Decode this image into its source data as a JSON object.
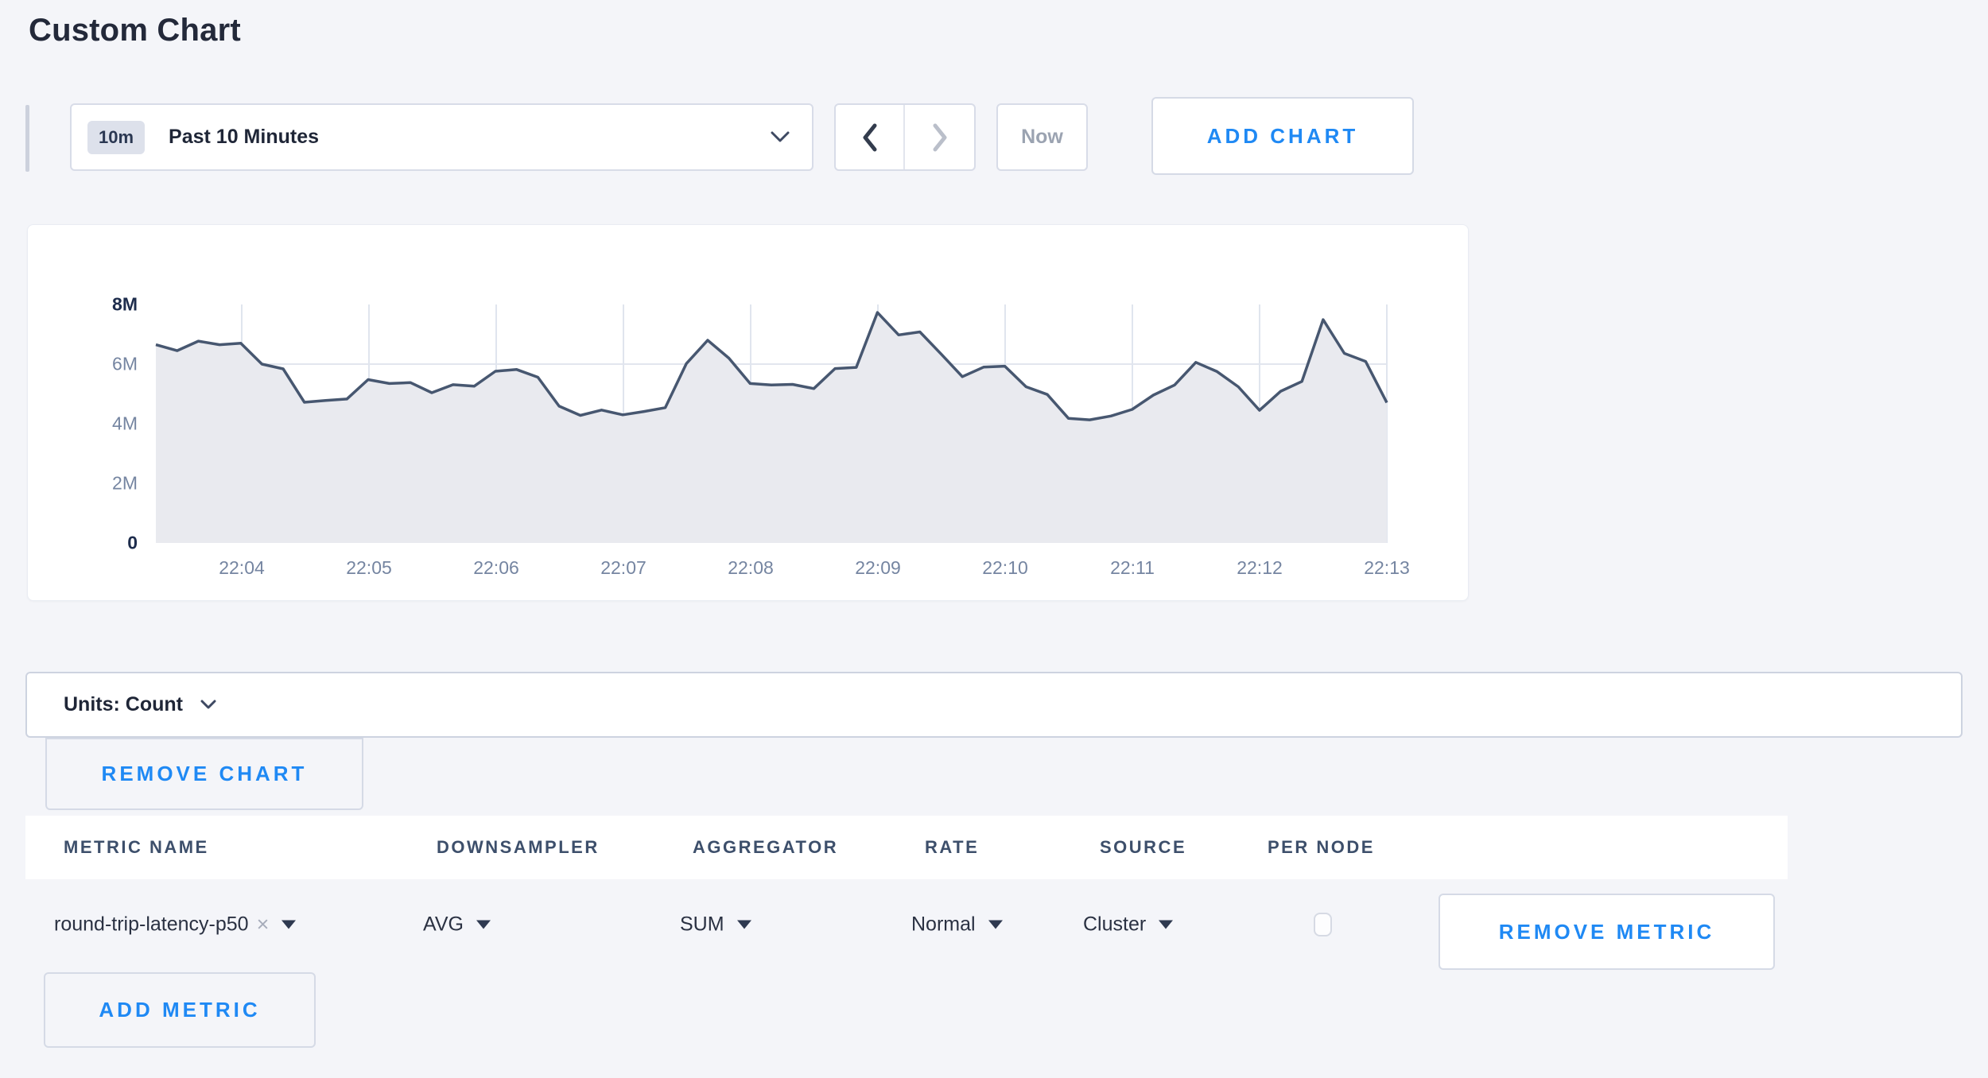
{
  "page": {
    "title": "Custom Chart",
    "background_color": "#f4f5f9",
    "accent_blue": "#1f89f4"
  },
  "toolbar": {
    "time_window_badge": "10m",
    "time_window_label": "Past 10 Minutes",
    "now_label": "Now",
    "add_chart_label": "ADD CHART",
    "icons": [
      "chevron-down-icon",
      "chevron-left-icon",
      "chevron-right-icon"
    ]
  },
  "chart_data": {
    "type": "area",
    "title": "",
    "xlabel": "",
    "ylabel": "",
    "unit": "count (millions)",
    "ylim_millions": [
      0,
      8
    ],
    "y_tick_labels": [
      "0",
      "2M",
      "4M",
      "6M",
      "8M"
    ],
    "x_labels": [
      "22:04",
      "22:05",
      "22:06",
      "22:07",
      "22:08",
      "22:09",
      "22:10",
      "22:11",
      "22:12",
      "22:13"
    ],
    "series_start_time": "22:03:20",
    "series_end_time": "22:13:00",
    "sample_interval_seconds": 10,
    "grid": true,
    "legend": "none",
    "line_color": "#475770",
    "fill_color": "#e9eaef",
    "values_millions": [
      6.65,
      6.45,
      6.77,
      6.65,
      6.7,
      6.0,
      5.84,
      4.72,
      4.78,
      4.83,
      5.48,
      5.35,
      5.38,
      5.04,
      5.31,
      5.26,
      5.76,
      5.82,
      5.56,
      4.59,
      4.28,
      4.46,
      4.3,
      4.41,
      4.54,
      6.02,
      6.8,
      6.2,
      5.35,
      5.3,
      5.32,
      5.18,
      5.85,
      5.89,
      7.73,
      6.98,
      7.08,
      6.34,
      5.58,
      5.9,
      5.93,
      5.24,
      4.98,
      4.18,
      4.13,
      4.26,
      4.48,
      4.96,
      5.3,
      6.06,
      5.75,
      5.24,
      4.45,
      5.09,
      5.42,
      7.49,
      6.36,
      6.09,
      4.71
    ]
  },
  "units_bar": {
    "label": "Units: Count"
  },
  "chart_actions": {
    "remove_chart_label": "REMOVE CHART"
  },
  "metrics_table": {
    "columns": [
      "METRIC NAME",
      "DOWNSAMPLER",
      "AGGREGATOR",
      "RATE",
      "SOURCE",
      "PER NODE"
    ],
    "rows": [
      {
        "metric_name": "round-trip-latency-p50",
        "clear_icon": "×",
        "downsampler": "AVG",
        "aggregator": "SUM",
        "rate": "Normal",
        "source": "Cluster",
        "per_node_checked": false,
        "remove_label": "REMOVE METRIC"
      }
    ],
    "add_metric_label": "ADD METRIC"
  }
}
